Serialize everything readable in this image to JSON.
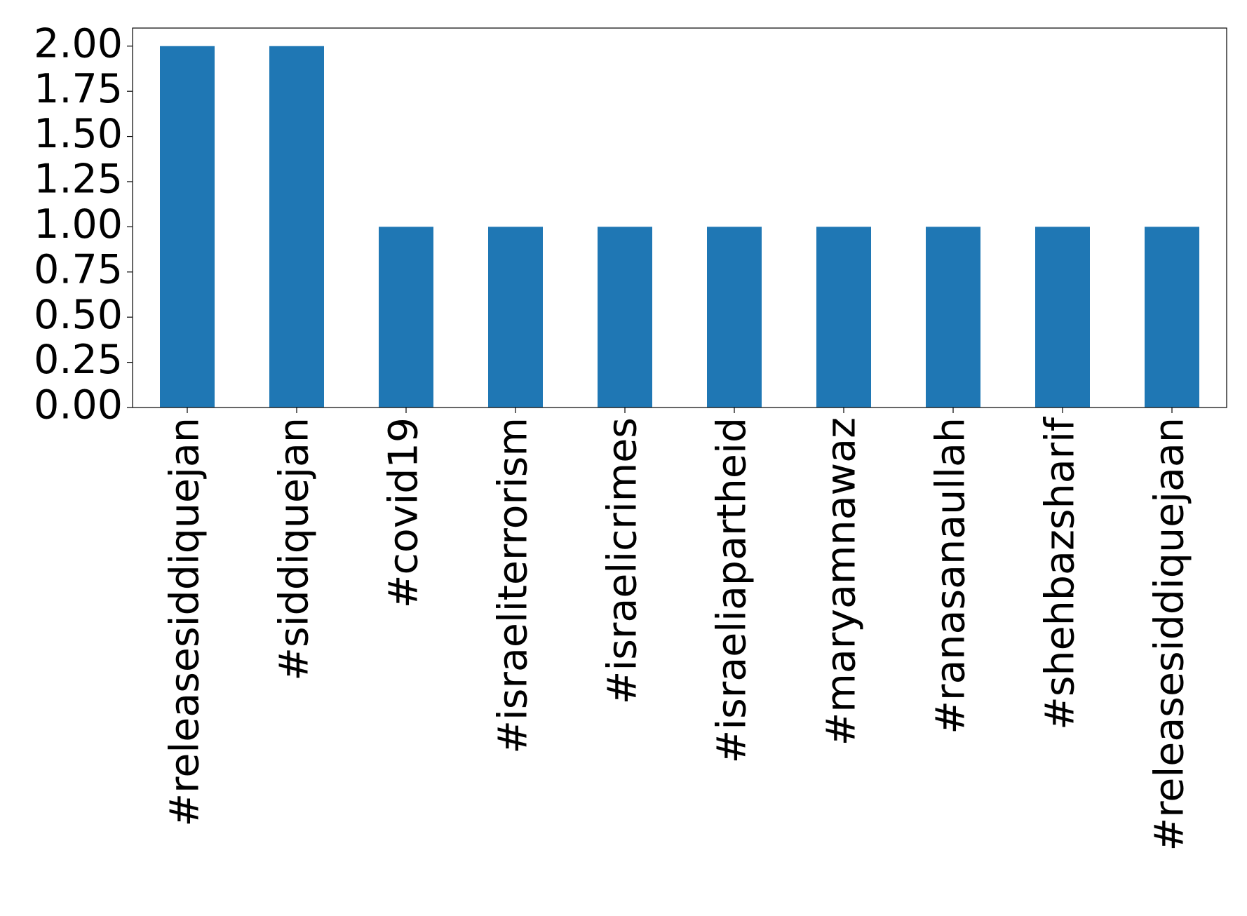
{
  "chart_data": {
    "type": "bar",
    "categories": [
      "#releasesiddiquejan",
      "#siddiquejan",
      "#covid19",
      "#israeliterrorism",
      "#israelicrimes",
      "#israeliapartheid",
      "#maryamnawaz",
      "#ranasanaullah",
      "#shehbazsharif",
      "#releasesiddiquejaan"
    ],
    "values": [
      2,
      2,
      1,
      1,
      1,
      1,
      1,
      1,
      1,
      1
    ],
    "color": "#1f77b4",
    "ylim": [
      0,
      2.1
    ],
    "yticks": [
      {
        "value": 0,
        "label": "0.00"
      },
      {
        "value": 0.25,
        "label": "0.25"
      },
      {
        "value": 0.5,
        "label": "0.50"
      },
      {
        "value": 0.75,
        "label": "0.75"
      },
      {
        "value": 1,
        "label": "1.00"
      },
      {
        "value": 1.25,
        "label": "1.25"
      },
      {
        "value": 1.5,
        "label": "1.50"
      },
      {
        "value": 1.75,
        "label": "1.75"
      },
      {
        "value": 2,
        "label": "2.00"
      }
    ],
    "grid": false
  }
}
